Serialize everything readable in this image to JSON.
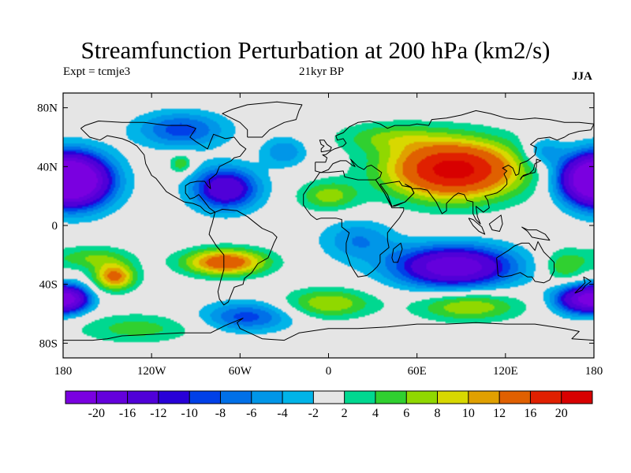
{
  "title": "Streamfunction Perturbation at 200 hPa (km2/s)",
  "subtitle_left": "Expt = tcmje3",
  "subtitle_center": "21kyr BP",
  "subtitle_right": "JJA",
  "map": {
    "projection": "cylindrical-equidistant",
    "lon_range": [
      -180,
      180
    ],
    "lat_range": [
      -90,
      90
    ],
    "lat_ticks": [
      {
        "value": 80,
        "label": "80N"
      },
      {
        "value": 40,
        "label": "40N"
      },
      {
        "value": 0,
        "label": "0"
      },
      {
        "value": -40,
        "label": "40S"
      },
      {
        "value": -80,
        "label": "80S"
      }
    ],
    "lon_ticks": [
      {
        "value": -180,
        "label": "180"
      },
      {
        "value": -120,
        "label": "120W"
      },
      {
        "value": -60,
        "label": "60W"
      },
      {
        "value": 0,
        "label": "0"
      },
      {
        "value": 60,
        "label": "60E"
      },
      {
        "value": 120,
        "label": "120E"
      },
      {
        "value": 180,
        "label": "180"
      }
    ],
    "field_features": [
      {
        "kind": "max",
        "lon": 85,
        "lat": 38,
        "amplitude": 22,
        "radius_lon": 45,
        "radius_lat": 20
      },
      {
        "kind": "max",
        "lon": 40,
        "lat": 60,
        "amplitude": 5,
        "radius_lon": 35,
        "radius_lat": 10
      },
      {
        "kind": "max",
        "lon": 0,
        "lat": 20,
        "amplitude": 7,
        "radius_lon": 20,
        "radius_lat": 10
      },
      {
        "kind": "max",
        "lon": -100,
        "lat": 42,
        "amplitude": 6,
        "radius_lon": 8,
        "radius_lat": 7
      },
      {
        "kind": "max",
        "lon": -70,
        "lat": -25,
        "amplitude": 15,
        "radius_lon": 28,
        "radius_lat": 9
      },
      {
        "kind": "max",
        "lon": -145,
        "lat": -35,
        "amplitude": 13,
        "radius_lon": 14,
        "radius_lat": 9
      },
      {
        "kind": "max",
        "lon": -160,
        "lat": -22,
        "amplitude": 6,
        "radius_lon": 25,
        "radius_lat": 8
      },
      {
        "kind": "max",
        "lon": 0,
        "lat": -53,
        "amplitude": 8,
        "radius_lon": 30,
        "radius_lat": 10
      },
      {
        "kind": "max",
        "lon": 95,
        "lat": -55,
        "amplitude": 8,
        "radius_lon": 35,
        "radius_lat": 10
      },
      {
        "kind": "max",
        "lon": 160,
        "lat": -28,
        "amplitude": 6,
        "radius_lon": 15,
        "radius_lat": 12
      },
      {
        "kind": "max",
        "lon": -130,
        "lat": -70,
        "amplitude": 5,
        "radius_lon": 40,
        "radius_lat": 10
      },
      {
        "kind": "min",
        "lon": -170,
        "lat": 30,
        "amplitude": -20,
        "radius_lon": 25,
        "radius_lat": 18
      },
      {
        "kind": "min",
        "lon": 178,
        "lat": 32,
        "amplitude": -18,
        "radius_lon": 22,
        "radius_lat": 16
      },
      {
        "kind": "min",
        "lon": -70,
        "lat": 25,
        "amplitude": -16,
        "radius_lon": 22,
        "radius_lat": 14
      },
      {
        "kind": "min",
        "lon": -100,
        "lat": 65,
        "amplitude": -9,
        "radius_lon": 30,
        "radius_lat": 12
      },
      {
        "kind": "min",
        "lon": 85,
        "lat": -28,
        "amplitude": -20,
        "radius_lon": 40,
        "radius_lat": 14
      },
      {
        "kind": "min",
        "lon": 170,
        "lat": -50,
        "amplitude": -16,
        "radius_lon": 18,
        "radius_lat": 10
      },
      {
        "kind": "min",
        "lon": -175,
        "lat": -50,
        "amplitude": -15,
        "radius_lon": 14,
        "radius_lat": 9
      },
      {
        "kind": "min",
        "lon": -55,
        "lat": -62,
        "amplitude": -9,
        "radius_lon": 30,
        "radius_lat": 10
      },
      {
        "kind": "min",
        "lon": 20,
        "lat": -10,
        "amplitude": -6,
        "radius_lon": 25,
        "radius_lat": 14
      },
      {
        "kind": "min",
        "lon": 145,
        "lat": 50,
        "amplitude": -6,
        "radius_lon": 14,
        "radius_lat": 10
      },
      {
        "kind": "min",
        "lon": -30,
        "lat": 50,
        "amplitude": -6,
        "radius_lon": 15,
        "radius_lat": 10
      }
    ],
    "coastline_color": "#000000",
    "neutral_color": "#e5e5e5"
  },
  "colorbar": {
    "colors": [
      "#7a00e0",
      "#6400dc",
      "#5000d8",
      "#2800d8",
      "#0040e8",
      "#0070e8",
      "#0096e8",
      "#00b4e8",
      "#e5e5e5",
      "#00d890",
      "#30d030",
      "#90d800",
      "#d8d800",
      "#e0a000",
      "#e06000",
      "#e02000",
      "#d80000"
    ],
    "levels": [
      -20,
      -16,
      -12,
      -10,
      -8,
      -6,
      -4,
      -2,
      2,
      4,
      6,
      8,
      10,
      12,
      16,
      20
    ],
    "labels": [
      "-20",
      "-16",
      "-12",
      "-10",
      "-8",
      "-6",
      "-4",
      "-2",
      "2",
      "4",
      "6",
      "8",
      "10",
      "12",
      "16",
      "20"
    ]
  }
}
